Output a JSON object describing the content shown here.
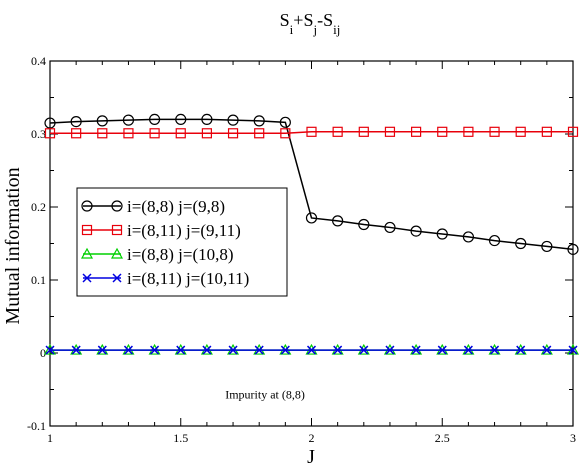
{
  "chart_data": {
    "type": "line",
    "title_parts": [
      {
        "text": "S",
        "sub": false
      },
      {
        "text": "i",
        "sub": true
      },
      {
        "text": "+S",
        "sub": false
      },
      {
        "text": "j",
        "sub": true
      },
      {
        "text": "-S",
        "sub": false
      },
      {
        "text": "ij",
        "sub": true
      }
    ],
    "xlabel": "J",
    "ylabel": "Mutual information",
    "xlim": [
      1,
      3
    ],
    "ylim": [
      -0.1,
      0.4
    ],
    "xticks": [
      1,
      1.5,
      2,
      2.5,
      3
    ],
    "yticks": [
      -0.1,
      0,
      0.1,
      0.2,
      0.3,
      0.4
    ],
    "xtick_labels": [
      "1",
      "1.5",
      "2",
      "2.5",
      "3"
    ],
    "ytick_labels": [
      "-0.1",
      "0",
      "0.1",
      "0.2",
      "0.3",
      "0.4"
    ],
    "annotation": {
      "text": "Impurity at (8,8)",
      "x": 1.67,
      "y": -0.062
    },
    "legend_position": "center-left",
    "series": [
      {
        "name": "i=(8,8) j=(9,8)",
        "color": "#000000",
        "marker": "circle",
        "x": [
          1.0,
          1.1,
          1.2,
          1.3,
          1.4,
          1.5,
          1.6,
          1.7,
          1.8,
          1.9,
          2.0,
          2.1,
          2.2,
          2.3,
          2.4,
          2.5,
          2.6,
          2.7,
          2.8,
          2.9,
          3.0
        ],
        "y": [
          0.315,
          0.317,
          0.318,
          0.319,
          0.32,
          0.32,
          0.32,
          0.319,
          0.318,
          0.316,
          0.185,
          0.181,
          0.176,
          0.172,
          0.167,
          0.163,
          0.159,
          0.154,
          0.15,
          0.146,
          0.142
        ]
      },
      {
        "name": "i=(8,11) j=(9,11)",
        "color": "#e8000b",
        "marker": "square",
        "x": [
          1.0,
          1.1,
          1.2,
          1.3,
          1.4,
          1.5,
          1.6,
          1.7,
          1.8,
          1.9,
          2.0,
          2.1,
          2.2,
          2.3,
          2.4,
          2.5,
          2.6,
          2.7,
          2.8,
          2.9,
          3.0
        ],
        "y": [
          0.301,
          0.301,
          0.301,
          0.301,
          0.301,
          0.301,
          0.301,
          0.301,
          0.301,
          0.301,
          0.303,
          0.303,
          0.303,
          0.303,
          0.303,
          0.303,
          0.303,
          0.303,
          0.303,
          0.303,
          0.303
        ]
      },
      {
        "name": "i=(8,8) j=(10,8)",
        "color": "#00d000",
        "marker": "triangle",
        "x": [
          1.0,
          1.1,
          1.2,
          1.3,
          1.4,
          1.5,
          1.6,
          1.7,
          1.8,
          1.9,
          2.0,
          2.1,
          2.2,
          2.3,
          2.4,
          2.5,
          2.6,
          2.7,
          2.8,
          2.9,
          3.0
        ],
        "y": [
          0.004,
          0.004,
          0.004,
          0.004,
          0.004,
          0.004,
          0.004,
          0.004,
          0.004,
          0.004,
          0.004,
          0.004,
          0.004,
          0.004,
          0.004,
          0.004,
          0.004,
          0.004,
          0.004,
          0.004,
          0.004
        ]
      },
      {
        "name": "i=(8,11) j=(10,11)",
        "color": "#0000e0",
        "marker": "x",
        "x": [
          1.0,
          1.1,
          1.2,
          1.3,
          1.4,
          1.5,
          1.6,
          1.7,
          1.8,
          1.9,
          2.0,
          2.1,
          2.2,
          2.3,
          2.4,
          2.5,
          2.6,
          2.7,
          2.8,
          2.9,
          3.0
        ],
        "y": [
          0.004,
          0.004,
          0.004,
          0.004,
          0.004,
          0.004,
          0.004,
          0.004,
          0.004,
          0.004,
          0.004,
          0.004,
          0.004,
          0.004,
          0.004,
          0.004,
          0.004,
          0.004,
          0.004,
          0.004,
          0.004
        ]
      }
    ]
  }
}
